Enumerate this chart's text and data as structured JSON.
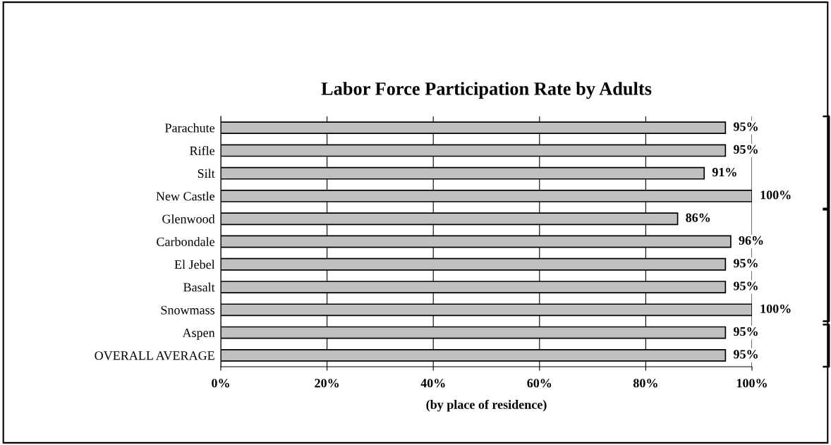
{
  "chart_data": {
    "type": "bar",
    "orientation": "horizontal",
    "title": "Labor Force Participation Rate by Adults",
    "xlabel": "(by place of residence)",
    "categories": [
      "Parachute",
      "Rifle",
      "Silt",
      "New Castle",
      "Glenwood",
      "Carbondale",
      "El Jebel",
      "Basalt",
      "Snowmass",
      "Aspen",
      "OVERALL AVERAGE"
    ],
    "values": [
      95,
      95,
      91,
      100,
      86,
      96,
      95,
      95,
      100,
      95,
      95
    ],
    "value_labels": [
      "95%",
      "95%",
      "91%",
      "100%",
      "86%",
      "96%",
      "95%",
      "95%",
      "100%",
      "95%",
      "95%"
    ],
    "color": "#c0c0c0",
    "xlim": [
      0,
      100
    ],
    "xticks": [
      {
        "value": 0,
        "label": "0%"
      },
      {
        "value": 20,
        "label": "20%"
      },
      {
        "value": 40,
        "label": "40%"
      },
      {
        "value": 60,
        "label": "60%"
      },
      {
        "value": 80,
        "label": "80%"
      },
      {
        "value": 100,
        "label": "100%"
      }
    ],
    "grid": "x"
  }
}
